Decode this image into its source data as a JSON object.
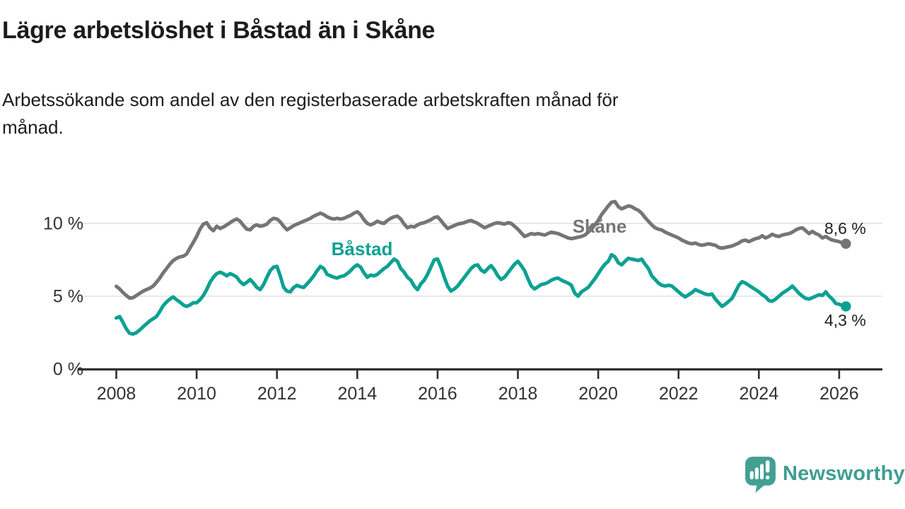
{
  "colors": {
    "skane": "#757575",
    "bastad": "#0ba192",
    "grid": "#e1e1e1",
    "axis": "#2f2f2f",
    "axis_text": "#333333",
    "value_label": "#1f1f1f",
    "logo": "#42a093",
    "background": "#ffffff"
  },
  "chart_data": {
    "type": "line",
    "title": "Lägre arbetslöshet i Båstad än i Skåne",
    "subtitle_lines": [
      "Arbetssökande som andel av den registerbaserade arbetskraften månad för",
      "månad."
    ],
    "x_unit": "monthly observations",
    "x_start": "2008-01",
    "x_end": "2026-03",
    "grid": "horizontal",
    "legend": "inline-series-labels",
    "x_axis": {
      "ticks": [
        2008,
        2010,
        2012,
        2014,
        2016,
        2018,
        2020,
        2022,
        2024,
        2026
      ]
    },
    "y_axis": {
      "range": [
        0,
        12.2
      ],
      "ticks": [
        {
          "value": 0,
          "label": "0 %"
        },
        {
          "value": 5,
          "label": "5 %"
        },
        {
          "value": 10,
          "label": "10 %"
        }
      ]
    },
    "series": [
      {
        "name": "Skåne",
        "color": "#757575",
        "end_label": "8,6 %",
        "last_value": 8.6,
        "values": [
          5.68,
          5.5,
          5.25,
          5.05,
          4.87,
          4.9,
          5.05,
          5.2,
          5.35,
          5.45,
          5.55,
          5.7,
          5.95,
          6.25,
          6.6,
          6.9,
          7.2,
          7.45,
          7.6,
          7.7,
          7.75,
          7.9,
          8.3,
          8.7,
          9.1,
          9.6,
          9.95,
          10.05,
          9.7,
          9.5,
          9.8,
          9.65,
          9.75,
          9.9,
          10.05,
          10.2,
          10.3,
          10.15,
          9.85,
          9.6,
          9.56,
          9.8,
          9.9,
          9.8,
          9.85,
          9.95,
          10.2,
          10.35,
          10.3,
          10.1,
          9.8,
          9.56,
          9.7,
          9.85,
          9.95,
          10.05,
          10.15,
          10.25,
          10.35,
          10.5,
          10.6,
          10.7,
          10.6,
          10.45,
          10.35,
          10.3,
          10.35,
          10.3,
          10.35,
          10.45,
          10.55,
          10.7,
          10.8,
          10.6,
          10.25,
          10.0,
          9.9,
          10.0,
          10.15,
          10.05,
          10.0,
          10.2,
          10.35,
          10.45,
          10.5,
          10.3,
          9.95,
          9.7,
          9.8,
          9.75,
          9.9,
          10.0,
          10.05,
          10.15,
          10.25,
          10.4,
          10.45,
          10.2,
          9.9,
          9.65,
          9.75,
          9.85,
          9.95,
          10.0,
          10.05,
          10.15,
          10.2,
          10.1,
          10.0,
          9.85,
          9.7,
          9.8,
          9.9,
          10.0,
          10.05,
          10.0,
          9.95,
          10.05,
          10.0,
          9.8,
          9.6,
          9.35,
          9.1,
          9.2,
          9.3,
          9.25,
          9.3,
          9.25,
          9.2,
          9.3,
          9.4,
          9.35,
          9.3,
          9.2,
          9.1,
          9.0,
          8.95,
          9.0,
          9.05,
          9.1,
          9.2,
          9.4,
          9.6,
          9.9,
          10.2,
          10.6,
          10.9,
          11.2,
          11.45,
          11.5,
          11.15,
          11.0,
          11.1,
          11.2,
          11.15,
          11.0,
          10.9,
          10.7,
          10.4,
          10.15,
          9.9,
          9.7,
          9.6,
          9.55,
          9.4,
          9.3,
          9.2,
          9.1,
          9.0,
          8.85,
          8.75,
          8.65,
          8.6,
          8.65,
          8.55,
          8.5,
          8.55,
          8.6,
          8.55,
          8.5,
          8.35,
          8.3,
          8.35,
          8.4,
          8.45,
          8.55,
          8.65,
          8.8,
          8.85,
          8.75,
          8.85,
          8.95,
          9.0,
          9.15,
          9.0,
          9.1,
          9.25,
          9.15,
          9.1,
          9.2,
          9.25,
          9.3,
          9.4,
          9.55,
          9.65,
          9.7,
          9.5,
          9.3,
          9.45,
          9.3,
          9.2,
          9.0,
          9.1,
          8.95,
          8.85,
          8.8,
          8.75,
          8.65,
          8.6
        ]
      },
      {
        "name": "Båstad",
        "color": "#0ba192",
        "end_label": "4,3 %",
        "last_value": 4.3,
        "values": [
          3.5,
          3.6,
          3.2,
          2.75,
          2.45,
          2.4,
          2.5,
          2.68,
          2.9,
          3.1,
          3.3,
          3.45,
          3.6,
          3.95,
          4.35,
          4.6,
          4.8,
          4.95,
          4.75,
          4.6,
          4.4,
          4.3,
          4.4,
          4.55,
          4.55,
          4.75,
          5.05,
          5.45,
          5.95,
          6.3,
          6.55,
          6.65,
          6.55,
          6.4,
          6.55,
          6.45,
          6.3,
          6.0,
          5.8,
          5.95,
          6.15,
          5.9,
          5.6,
          5.45,
          5.8,
          6.3,
          6.75,
          7.0,
          7.05,
          6.4,
          5.6,
          5.35,
          5.3,
          5.6,
          5.75,
          5.65,
          5.6,
          5.85,
          6.1,
          6.4,
          6.75,
          7.05,
          6.9,
          6.5,
          6.4,
          6.3,
          6.25,
          6.35,
          6.4,
          6.55,
          6.75,
          7.0,
          7.15,
          7.0,
          6.6,
          6.3,
          6.45,
          6.4,
          6.5,
          6.7,
          6.9,
          7.05,
          7.3,
          7.55,
          7.4,
          6.9,
          6.65,
          6.3,
          6.1,
          5.7,
          5.45,
          5.85,
          6.1,
          6.5,
          7.0,
          7.5,
          7.55,
          7.0,
          6.3,
          5.7,
          5.35,
          5.5,
          5.7,
          6.0,
          6.3,
          6.6,
          6.9,
          7.1,
          7.15,
          6.8,
          6.65,
          6.9,
          7.1,
          6.8,
          6.4,
          6.15,
          6.3,
          6.6,
          6.9,
          7.2,
          7.4,
          7.1,
          6.75,
          6.2,
          5.7,
          5.5,
          5.65,
          5.8,
          5.85,
          5.95,
          6.1,
          6.2,
          6.25,
          6.1,
          6.0,
          5.9,
          5.75,
          5.2,
          5.0,
          5.3,
          5.45,
          5.6,
          5.9,
          6.2,
          6.55,
          6.9,
          7.2,
          7.4,
          7.85,
          7.7,
          7.3,
          7.15,
          7.4,
          7.6,
          7.55,
          7.5,
          7.45,
          7.55,
          7.2,
          6.9,
          6.4,
          6.15,
          5.9,
          5.75,
          5.7,
          5.75,
          5.7,
          5.5,
          5.3,
          5.1,
          4.95,
          5.1,
          5.25,
          5.45,
          5.35,
          5.25,
          5.15,
          5.1,
          5.15,
          4.8,
          4.55,
          4.3,
          4.45,
          4.65,
          4.85,
          5.3,
          5.75,
          6.0,
          5.9,
          5.75,
          5.6,
          5.45,
          5.3,
          5.1,
          4.95,
          4.7,
          4.65,
          4.8,
          5.0,
          5.2,
          5.35,
          5.5,
          5.7,
          5.45,
          5.2,
          5.0,
          4.85,
          4.8,
          4.9,
          5.0,
          5.1,
          5.05,
          5.3,
          5.0,
          4.8,
          4.5,
          4.45,
          4.35,
          4.3
        ]
      }
    ]
  },
  "footer": {
    "brand": "Newsworthy",
    "icon": "newsworthy-speech-bubble-bar-chart-icon"
  }
}
